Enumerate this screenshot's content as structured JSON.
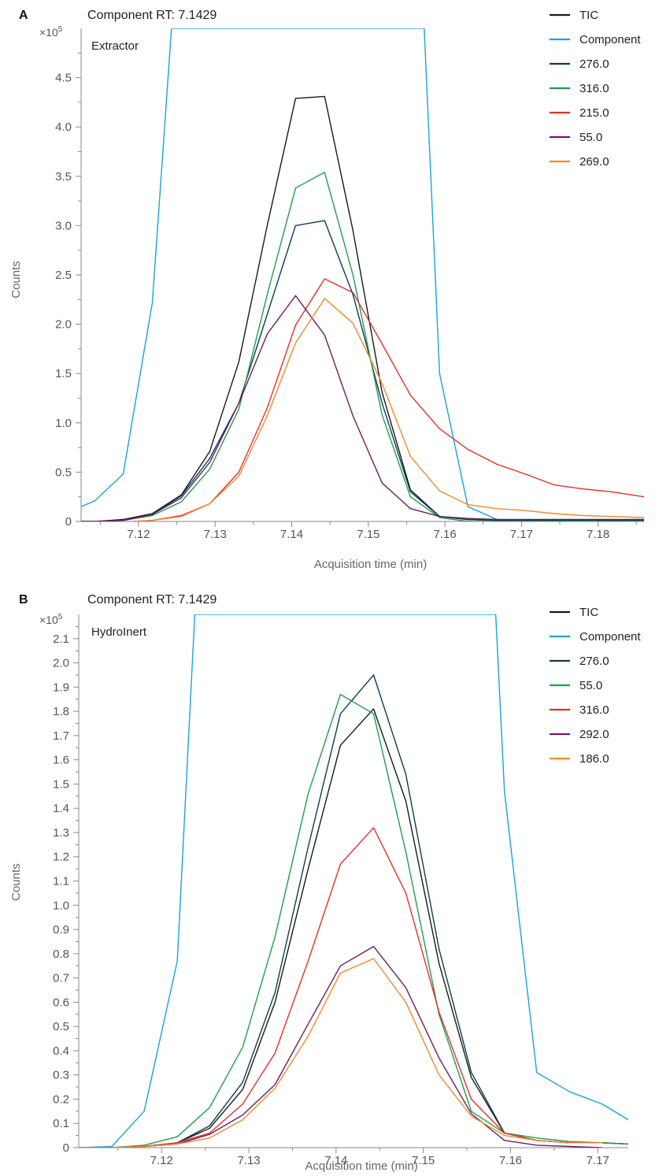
{
  "colors": {
    "TIC": "#1a1a1a",
    "Component": "#1ba3dc",
    "navy": "#0d3b5c",
    "green": "#1f9e4e",
    "red": "#e3312d",
    "purple": "#6e1c6a",
    "orange": "#f08a2c",
    "axis": "#888888"
  },
  "chart_data": [
    {
      "type": "line",
      "panel": "A",
      "title": "Component RT: 7.1429",
      "subtitle": "Extractor",
      "xlabel": "Acquisition time (min)",
      "ylabel": "Counts",
      "y_multiplier": "×10",
      "y_multiplier_exp": "5",
      "xlim": [
        7.1125,
        7.186
      ],
      "ylim": [
        0,
        5.0
      ],
      "xticks": [
        "7.12",
        "7.13",
        "7.14",
        "7.15",
        "7.16",
        "7.17",
        "7.18"
      ],
      "xtick_values": [
        7.12,
        7.13,
        7.14,
        7.15,
        7.16,
        7.17,
        7.18
      ],
      "yticks": [
        "0",
        "0.5",
        "1.0",
        "1.5",
        "2.0",
        "2.5",
        "3.0",
        "3.5",
        "4.0",
        "4.5"
      ],
      "ytick_values": [
        0,
        0.5,
        1.0,
        1.5,
        2.0,
        2.5,
        3.0,
        3.5,
        4.0,
        4.5
      ],
      "legend_position": "top-right",
      "series": [
        {
          "name": "TIC",
          "color_key": "TIC",
          "x": [
            7.1125,
            7.1143,
            7.118,
            7.1218,
            7.1256,
            7.1293,
            7.1331,
            7.1368,
            7.1405,
            7.1443,
            7.148,
            7.1518,
            7.1555,
            7.1593,
            7.163,
            7.1668,
            7.1705,
            7.186
          ],
          "y": [
            0.0,
            0.0,
            0.02,
            0.08,
            0.27,
            0.71,
            1.62,
            3.0,
            4.29,
            4.31,
            2.95,
            1.31,
            0.32,
            0.05,
            0.02,
            0.01,
            0.01,
            0.01
          ]
        },
        {
          "name": "Component",
          "color_key": "Component",
          "x": [
            7.1125,
            7.1143,
            7.118,
            7.1218,
            7.1243,
            7.1573,
            7.1593,
            7.163,
            7.1668,
            7.1705
          ],
          "y": [
            0.15,
            0.21,
            0.48,
            2.22,
            5.0,
            5.0,
            1.5,
            0.15,
            0.02,
            0.0
          ]
        },
        {
          "name": "276.0",
          "color_key": "navy",
          "x": [
            7.1125,
            7.1143,
            7.118,
            7.1218,
            7.1256,
            7.1293,
            7.1331,
            7.1368,
            7.1405,
            7.1443,
            7.148,
            7.1518,
            7.1555,
            7.1593,
            7.163,
            7.1668,
            7.1705,
            7.186
          ],
          "y": [
            0.0,
            0.0,
            0.01,
            0.07,
            0.26,
            0.64,
            1.2,
            2.1,
            3.0,
            3.05,
            2.3,
            1.2,
            0.3,
            0.05,
            0.02,
            0.01,
            0.01,
            0.01
          ]
        },
        {
          "name": "316.0",
          "color_key": "green",
          "x": [
            7.1125,
            7.1143,
            7.118,
            7.1218,
            7.1256,
            7.1293,
            7.1331,
            7.1368,
            7.1405,
            7.1443,
            7.148,
            7.1518,
            7.1555,
            7.1593,
            7.163,
            7.1668,
            7.1705,
            7.186
          ],
          "y": [
            0.0,
            0.0,
            0.01,
            0.06,
            0.2,
            0.53,
            1.14,
            2.3,
            3.38,
            3.54,
            2.5,
            1.08,
            0.25,
            0.04,
            0.0,
            0.0,
            0.0,
            0.0
          ]
        },
        {
          "name": "215.0",
          "color_key": "red",
          "x": [
            7.1193,
            7.1218,
            7.1256,
            7.1293,
            7.1331,
            7.1368,
            7.1405,
            7.1443,
            7.148,
            7.1518,
            7.1555,
            7.1593,
            7.163,
            7.1668,
            7.1705,
            7.1743,
            7.178,
            7.1818,
            7.186
          ],
          "y": [
            0.0,
            0.01,
            0.06,
            0.18,
            0.5,
            1.15,
            1.99,
            2.46,
            2.32,
            1.8,
            1.28,
            0.94,
            0.73,
            0.58,
            0.48,
            0.37,
            0.33,
            0.3,
            0.25
          ]
        },
        {
          "name": "55.0",
          "color_key": "purple",
          "x": [
            7.1125,
            7.1143,
            7.118,
            7.1218,
            7.1256,
            7.1293,
            7.1331,
            7.1368,
            7.1405,
            7.1443,
            7.148,
            7.1518,
            7.1555,
            7.1593,
            7.163,
            7.1668,
            7.1705,
            7.186
          ],
          "y": [
            0.0,
            0.0,
            0.01,
            0.07,
            0.24,
            0.6,
            1.2,
            1.9,
            2.29,
            1.89,
            1.07,
            0.39,
            0.13,
            0.05,
            0.03,
            0.02,
            0.02,
            0.02
          ]
        },
        {
          "name": "269.0",
          "color_key": "orange",
          "x": [
            7.1193,
            7.1218,
            7.1256,
            7.1293,
            7.1331,
            7.1368,
            7.1405,
            7.1443,
            7.148,
            7.1518,
            7.1555,
            7.1593,
            7.163,
            7.1668,
            7.1705,
            7.1743,
            7.178,
            7.1818,
            7.186
          ],
          "y": [
            0.0,
            0.01,
            0.05,
            0.18,
            0.46,
            1.07,
            1.81,
            2.26,
            2.01,
            1.4,
            0.66,
            0.31,
            0.17,
            0.13,
            0.11,
            0.08,
            0.06,
            0.05,
            0.04
          ]
        }
      ]
    },
    {
      "type": "line",
      "panel": "B",
      "title": "Component RT: 7.1429",
      "subtitle": "HydroInert",
      "xlabel": "Acquisition time (min)",
      "ylabel": "Counts",
      "y_multiplier": "×10",
      "y_multiplier_exp": "5",
      "xlim": [
        7.1105,
        7.1735
      ],
      "ylim": [
        0,
        2.2
      ],
      "xticks": [
        "7.12",
        "7.13",
        "7.14",
        "7.15",
        "7.16",
        "7.17"
      ],
      "xtick_values": [
        7.12,
        7.13,
        7.14,
        7.15,
        7.16,
        7.17
      ],
      "yticks": [
        "0",
        "0.1",
        "0.2",
        "0.3",
        "0.4",
        "0.5",
        "0.6",
        "0.7",
        "0.8",
        "0.9",
        "1.0",
        "1.1",
        "1.2",
        "1.3",
        "1.4",
        "1.5",
        "1.6",
        "1.7",
        "1.8",
        "1.9",
        "2.0",
        "2.1"
      ],
      "ytick_values": [
        0,
        0.1,
        0.2,
        0.3,
        0.4,
        0.5,
        0.6,
        0.7,
        0.8,
        0.9,
        1.0,
        1.1,
        1.2,
        1.3,
        1.4,
        1.5,
        1.6,
        1.7,
        1.8,
        1.9,
        2.0,
        2.1
      ],
      "legend_position": "top-right",
      "series": [
        {
          "name": "TIC",
          "color_key": "TIC",
          "x": [
            7.1105,
            7.1143,
            7.118,
            7.1218,
            7.1255,
            7.1293,
            7.133,
            7.1368,
            7.1405,
            7.1443,
            7.148,
            7.1518,
            7.1555,
            7.1593,
            7.163,
            7.1668,
            7.1705,
            7.1735
          ],
          "y": [
            0.0,
            0.0,
            0.005,
            0.02,
            0.08,
            0.24,
            0.6,
            1.15,
            1.66,
            1.81,
            1.43,
            0.76,
            0.29,
            0.06,
            0.03,
            0.02,
            0.02,
            0.015
          ]
        },
        {
          "name": "Component",
          "color_key": "Component",
          "x": [
            7.1105,
            7.1143,
            7.118,
            7.1218,
            7.1238,
            7.1583,
            7.1593,
            7.163,
            7.1668,
            7.1705,
            7.1735
          ],
          "y": [
            0.0,
            0.005,
            0.15,
            0.77,
            2.2,
            2.2,
            1.47,
            0.31,
            0.23,
            0.18,
            0.115
          ]
        },
        {
          "name": "276.0",
          "color_key": "navy",
          "x": [
            7.1105,
            7.1143,
            7.118,
            7.1218,
            7.1255,
            7.1293,
            7.133,
            7.1368,
            7.1405,
            7.1443,
            7.148,
            7.1518,
            7.1555,
            7.1593,
            7.163,
            7.1668,
            7.1705,
            7.1735
          ],
          "y": [
            0.0,
            0.0,
            0.005,
            0.02,
            0.09,
            0.27,
            0.64,
            1.24,
            1.79,
            1.95,
            1.54,
            0.82,
            0.31,
            0.06,
            0.03,
            0.02,
            0.02,
            0.015
          ]
        },
        {
          "name": "55.0",
          "color_key": "green",
          "x": [
            7.1105,
            7.1143,
            7.118,
            7.1218,
            7.1255,
            7.1293,
            7.133,
            7.1368,
            7.1405,
            7.1443,
            7.148,
            7.1518,
            7.1555,
            7.1593,
            7.163,
            7.1668,
            7.1705,
            7.1735
          ],
          "y": [
            0.0,
            0.0,
            0.01,
            0.045,
            0.165,
            0.415,
            0.87,
            1.46,
            1.87,
            1.79,
            1.22,
            0.55,
            0.15,
            0.06,
            0.04,
            0.025,
            0.02,
            0.015
          ]
        },
        {
          "name": "316.0",
          "color_key": "red",
          "x": [
            7.1105,
            7.1143,
            7.118,
            7.1218,
            7.1255,
            7.1293,
            7.133,
            7.1368,
            7.1405,
            7.1443,
            7.148,
            7.1518,
            7.1555,
            7.1593,
            7.163,
            7.1668,
            7.1705
          ],
          "y": [
            0.0,
            0.0,
            0.005,
            0.02,
            0.06,
            0.18,
            0.39,
            0.77,
            1.17,
            1.32,
            1.05,
            0.56,
            0.2,
            0.06,
            0.03,
            0.02,
            0.02
          ]
        },
        {
          "name": "292.0",
          "color_key": "purple",
          "x": [
            7.1105,
            7.1143,
            7.118,
            7.1218,
            7.1255,
            7.1293,
            7.133,
            7.1368,
            7.1405,
            7.1443,
            7.148,
            7.1518,
            7.1555,
            7.1593,
            7.163,
            7.1668,
            7.1705
          ],
          "y": [
            0.0,
            0.0,
            0.005,
            0.015,
            0.055,
            0.135,
            0.26,
            0.51,
            0.75,
            0.83,
            0.66,
            0.37,
            0.14,
            0.03,
            0.01,
            0.005,
            0.0
          ]
        },
        {
          "name": "186.0",
          "color_key": "orange",
          "x": [
            7.1105,
            7.1143,
            7.118,
            7.1218,
            7.1255,
            7.1293,
            7.133,
            7.1368,
            7.1405,
            7.1443,
            7.148,
            7.1518,
            7.1555,
            7.1593,
            7.163,
            7.1668,
            7.1705
          ],
          "y": [
            0.0,
            0.0,
            0.005,
            0.015,
            0.04,
            0.115,
            0.245,
            0.46,
            0.72,
            0.78,
            0.6,
            0.3,
            0.13,
            0.05,
            0.03,
            0.02,
            0.02
          ]
        }
      ]
    }
  ]
}
